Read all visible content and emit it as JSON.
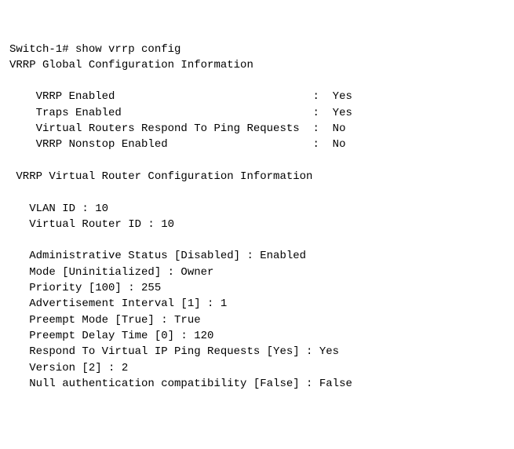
{
  "prompt": "Switch-1# ",
  "command": "show vrrp config",
  "global_header": "VRRP Global Configuration Information",
  "global": {
    "l1": {
      "label": "VRRP Enabled",
      "value": "Yes"
    },
    "l2": {
      "label": "Traps Enabled",
      "value": "Yes"
    },
    "l3": {
      "label": "Virtual Routers Respond To Ping Requests",
      "value": "No"
    },
    "l4": {
      "label": "VRRP Nonstop Enabled",
      "value": "No"
    }
  },
  "vr_header": "VRRP Virtual Router Configuration Information",
  "vr": {
    "vlan": {
      "label": "VLAN ID",
      "value": "10"
    },
    "vrid": {
      "label": "Virtual Router ID",
      "value": "10"
    },
    "admin": {
      "label": "Administrative Status",
      "default": "Disabled",
      "value": "Enabled"
    },
    "mode": {
      "label": "Mode",
      "default": "Uninitialized",
      "value": "Owner"
    },
    "priority": {
      "label": "Priority",
      "default": "100",
      "value": "255"
    },
    "adv": {
      "label": "Advertisement Interval",
      "default": "1",
      "value": "1"
    },
    "preempt": {
      "label": "Preempt Mode",
      "default": "True",
      "value": "True"
    },
    "pdelay": {
      "label": "Preempt Delay Time",
      "default": "0",
      "value": "120"
    },
    "ping": {
      "label": "Respond To Virtual IP Ping Requests",
      "default": "Yes",
      "value": "Yes"
    },
    "version": {
      "label": "Version",
      "default": "2",
      "value": "2"
    },
    "nullauth": {
      "label": "Null authentication compatibility",
      "default": "False",
      "value": "False"
    }
  },
  "style": {
    "font_family": "Courier New",
    "font_size_pt": 11,
    "text_color": "#000000",
    "background_color": "#ffffff",
    "global_label_pad": 42,
    "colon": ":",
    "vr_indent": "   ",
    "global_indent": "    "
  }
}
